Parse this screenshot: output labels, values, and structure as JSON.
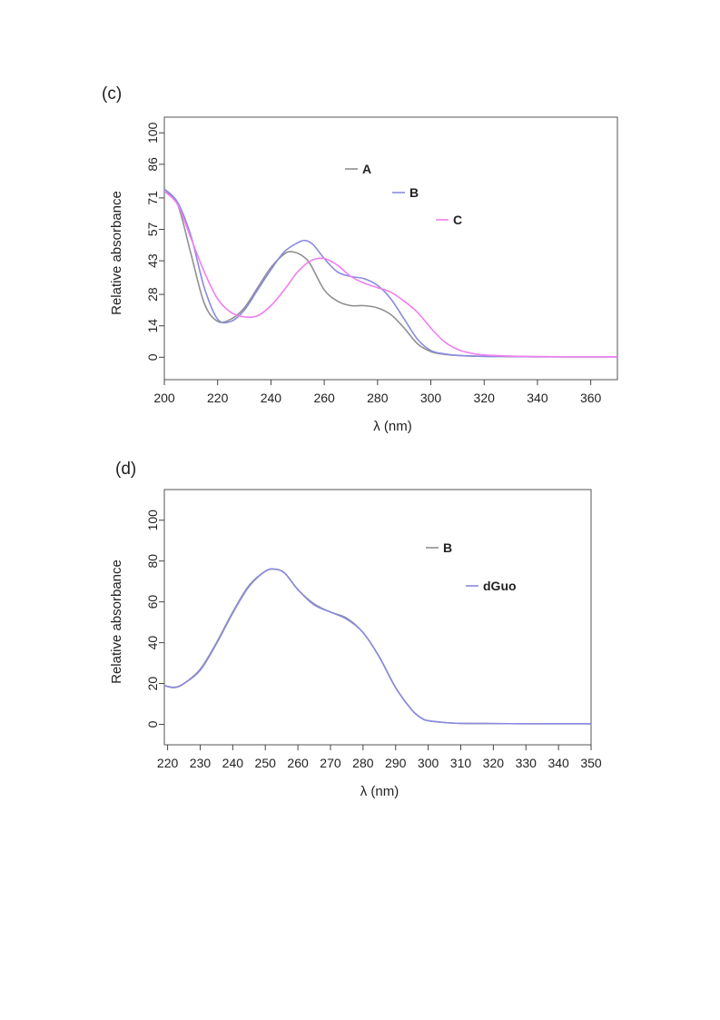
{
  "chart_data": [
    {
      "panel_label": "(c)",
      "type": "line",
      "xlabel": "λ (nm)",
      "ylabel": "Relative absorbance",
      "xlim": [
        200,
        370
      ],
      "ylim": [
        -10,
        107
      ],
      "xticks": [
        200,
        220,
        240,
        260,
        280,
        300,
        320,
        340,
        360
      ],
      "yticks": [
        0,
        14,
        28,
        43,
        57,
        71,
        86,
        100
      ],
      "grid": false,
      "legend_position": "top-center",
      "series": [
        {
          "name": "A",
          "color": "#909090",
          "x": [
            200,
            205,
            210,
            215,
            220,
            225,
            230,
            235,
            240,
            245,
            248,
            252,
            255,
            260,
            265,
            270,
            275,
            280,
            285,
            290,
            295,
            300,
            305,
            310,
            320,
            330,
            340,
            350,
            360,
            370
          ],
          "y": [
            74,
            68,
            46,
            24,
            16,
            17,
            22,
            31,
            40,
            46,
            47,
            45,
            41,
            30,
            25,
            23,
            23,
            22,
            19,
            13,
            6,
            2.5,
            1.3,
            0.8,
            0.4,
            0.3,
            0.2,
            0.2,
            0.2,
            0.2
          ]
        },
        {
          "name": "B",
          "color": "#8a8ae0",
          "x": [
            200,
            205,
            210,
            215,
            220,
            225,
            230,
            235,
            240,
            245,
            250,
            253,
            256,
            260,
            265,
            270,
            275,
            280,
            285,
            290,
            295,
            300,
            305,
            310,
            320,
            330,
            340,
            350,
            360,
            370
          ],
          "y": [
            75,
            69,
            54,
            31,
            17,
            16,
            21,
            30,
            39,
            47,
            51,
            52,
            50,
            44,
            38,
            36,
            35,
            32,
            26,
            17,
            8,
            3,
            1.5,
            0.8,
            0.4,
            0.3,
            0.2,
            0.2,
            0.2,
            0.2
          ]
        },
        {
          "name": "C",
          "color": "#f07ef0",
          "x": [
            200,
            205,
            210,
            215,
            220,
            225,
            230,
            235,
            240,
            245,
            250,
            255,
            260,
            265,
            270,
            275,
            280,
            285,
            290,
            295,
            300,
            305,
            310,
            315,
            320,
            330,
            340,
            350,
            360,
            370
          ],
          "y": [
            74,
            68,
            53,
            38,
            26,
            20,
            18,
            18.5,
            23,
            30,
            38,
            43,
            44,
            41,
            36,
            33,
            31,
            29,
            25,
            20,
            13,
            7,
            3.5,
            1.8,
            1,
            0.5,
            0.3,
            0.2,
            0.2,
            0.2
          ]
        }
      ]
    },
    {
      "panel_label": "(d)",
      "type": "line",
      "xlabel": "λ (nm)",
      "ylabel": "Relative absorbance",
      "xlim": [
        219,
        350
      ],
      "ylim": [
        -10,
        115
      ],
      "xticks": [
        220,
        230,
        240,
        250,
        260,
        270,
        280,
        290,
        300,
        310,
        320,
        330,
        340,
        350
      ],
      "yticks": [
        0,
        20,
        40,
        60,
        80,
        100
      ],
      "grid": false,
      "legend_position": "top-right",
      "series": [
        {
          "name": "B",
          "color": "#909090",
          "x": [
            219,
            222,
            225,
            230,
            235,
            240,
            245,
            250,
            253,
            256,
            260,
            265,
            270,
            275,
            280,
            285,
            290,
            295,
            298,
            300,
            305,
            310,
            320,
            330,
            340,
            350
          ],
          "y": [
            19,
            18,
            20,
            27,
            40,
            55,
            68,
            75,
            76,
            74,
            66,
            59,
            55,
            52,
            45,
            33,
            18,
            7,
            3,
            1.8,
            0.9,
            0.5,
            0.4,
            0.3,
            0.3,
            0.3
          ]
        },
        {
          "name": "dGuo",
          "color": "#8a8ae0",
          "x": [
            219,
            222,
            225,
            230,
            235,
            240,
            245,
            250,
            253,
            256,
            260,
            265,
            270,
            275,
            280,
            285,
            290,
            295,
            298,
            300,
            305,
            310,
            320,
            330,
            340,
            350
          ],
          "y": [
            19,
            18.2,
            20,
            26.5,
            39.5,
            54.5,
            67.5,
            75,
            76,
            74,
            66,
            58.5,
            55,
            51.5,
            45,
            33,
            18,
            7,
            3,
            1.8,
            0.9,
            0.5,
            0.4,
            0.3,
            0.3,
            0.3
          ]
        }
      ]
    }
  ]
}
